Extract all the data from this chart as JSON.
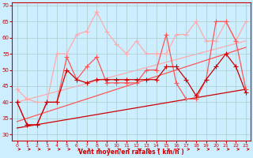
{
  "background_color": "#cceeff",
  "grid_color": "#aacccc",
  "xlim": [
    -0.5,
    23.5
  ],
  "ylim": [
    28,
    71
  ],
  "yticks": [
    30,
    35,
    40,
    45,
    50,
    55,
    60,
    65,
    70
  ],
  "xticks": [
    0,
    1,
    2,
    3,
    4,
    5,
    6,
    7,
    8,
    9,
    10,
    11,
    12,
    13,
    14,
    15,
    16,
    17,
    18,
    19,
    20,
    21,
    22,
    23
  ],
  "xlabel": "Vent moyen/en rafales ( km/h )",
  "lines": [
    {
      "x": [
        0,
        1,
        2,
        3,
        4,
        5,
        6,
        7,
        8,
        9,
        10,
        11,
        12,
        13,
        14,
        15,
        16,
        17,
        18,
        19,
        20,
        21,
        22,
        23
      ],
      "y": [
        40,
        33,
        33,
        40,
        40,
        50,
        47,
        46,
        47,
        47,
        47,
        47,
        47,
        47,
        47,
        51,
        51,
        47,
        42,
        47,
        51,
        55,
        51,
        43
      ],
      "color": "#cc0000",
      "lw": 0.9,
      "marker": "+",
      "markersize": 4,
      "zorder": 5
    },
    {
      "x": [
        0,
        1,
        2,
        3,
        4,
        5,
        6,
        7,
        8,
        9,
        10,
        11,
        12,
        13,
        14,
        15,
        16,
        17,
        18,
        19,
        20,
        21,
        22,
        23
      ],
      "y": [
        40,
        33,
        33,
        40,
        40,
        54,
        47,
        51,
        54,
        46,
        46,
        46,
        46,
        50,
        50,
        61,
        46,
        41,
        41,
        47,
        65,
        65,
        59,
        44
      ],
      "color": "#ff5555",
      "lw": 0.9,
      "marker": "+",
      "markersize": 4,
      "zorder": 4
    },
    {
      "x": [
        0,
        1,
        2,
        3,
        4,
        5,
        6,
        7,
        8,
        9,
        10,
        11,
        12,
        13,
        14,
        15,
        16,
        17,
        18,
        19,
        20,
        21,
        22,
        23
      ],
      "y": [
        44,
        41,
        40,
        40,
        55,
        55,
        61,
        62,
        68,
        62,
        58,
        55,
        59,
        55,
        55,
        55,
        61,
        61,
        65,
        59,
        59,
        65,
        59,
        65
      ],
      "color": "#ffaaaa",
      "lw": 0.9,
      "marker": "+",
      "markersize": 4,
      "zorder": 3
    },
    {
      "x": [
        0,
        23
      ],
      "y": [
        32,
        44
      ],
      "color": "#cc0000",
      "lw": 0.9,
      "marker": null,
      "zorder": 2,
      "linestyle": "-"
    },
    {
      "x": [
        0,
        23
      ],
      "y": [
        34,
        57
      ],
      "color": "#ff5555",
      "lw": 0.9,
      "marker": null,
      "zorder": 2,
      "linestyle": "-"
    },
    {
      "x": [
        0,
        23
      ],
      "y": [
        40,
        59
      ],
      "color": "#ffaaaa",
      "lw": 0.9,
      "marker": null,
      "zorder": 1,
      "linestyle": "-"
    }
  ],
  "arrow_color": "#cc0000"
}
